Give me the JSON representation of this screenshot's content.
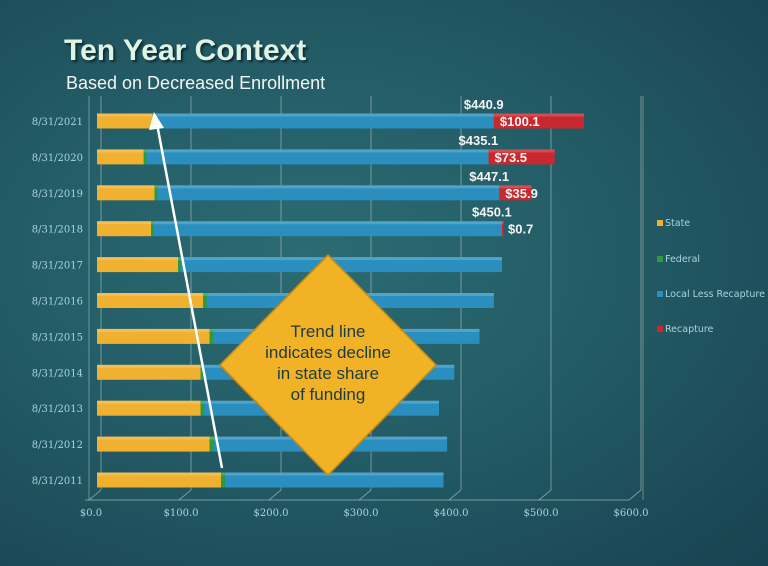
{
  "title": "Ten Year Context",
  "subtitle": "Based on Decreased Enrollment",
  "annotation": [
    "Trend line",
    "indicates decline",
    "in state share",
    "of funding"
  ],
  "colors": {
    "State": "#f0b030",
    "Federal": "#2e9a3c",
    "Local Less Recapture": "#2a8fbf",
    "Recapture": "#c8282e",
    "trend_arrow": "#ffffff",
    "annotation_fill": "#f2b226"
  },
  "chart_data": {
    "type": "bar",
    "orientation": "horizontal",
    "stacked": true,
    "categories": [
      "8/31/2021",
      "8/31/2020",
      "8/31/2019",
      "8/31/2018",
      "8/31/2017",
      "8/31/2016",
      "8/31/2015",
      "8/31/2014",
      "8/31/2013",
      "8/31/2012",
      "8/31/2011"
    ],
    "series": [
      {
        "name": "State",
        "values": [
          62,
          52,
          64,
          60,
          90,
          118,
          125,
          115,
          115,
          125,
          138
        ]
      },
      {
        "name": "Federal",
        "values": [
          3,
          3,
          3,
          3,
          3,
          4,
          4,
          4,
          4,
          4,
          4
        ]
      },
      {
        "name": "Local Less Recapture",
        "values": [
          376,
          380,
          380,
          387,
          357,
          319,
          296,
          278,
          261,
          260,
          243
        ]
      },
      {
        "name": "Recapture",
        "values": [
          100.1,
          73.5,
          35.9,
          0.7,
          0,
          0,
          0,
          0,
          0,
          0,
          0
        ]
      }
    ],
    "data_labels": [
      {
        "category": "8/31/2021",
        "total": "$440.9",
        "recapture": "$100.1"
      },
      {
        "category": "8/31/2020",
        "total": "$435.1",
        "recapture": "$73.5"
      },
      {
        "category": "8/31/2019",
        "total": "$447.1",
        "recapture": "$35.9"
      },
      {
        "category": "8/31/2018",
        "total": "$450.1",
        "recapture": "$0.7"
      }
    ],
    "x_ticks": [
      "$0.0",
      "$100.0",
      "$200.0",
      "$300.0",
      "$400.0",
      "$500.0",
      "$600.0"
    ],
    "xlim": [
      0,
      600
    ],
    "grid": true,
    "legend": "right",
    "trend_line": {
      "from": "8/31/2011",
      "to": "8/31/2021",
      "description": "state share"
    }
  }
}
